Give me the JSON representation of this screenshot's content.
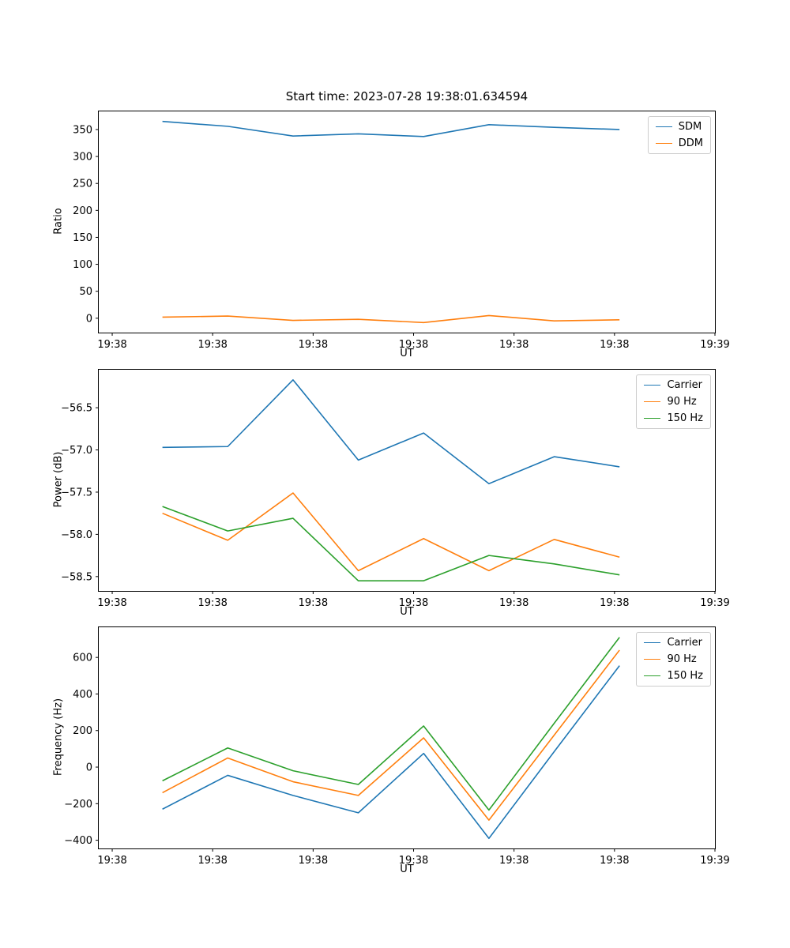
{
  "figure": {
    "title": "Start time: 2023-07-28 19:38:01.634594"
  },
  "chart_data": [
    {
      "type": "line",
      "name": "ratio",
      "title": "Start time: 2023-07-28 19:38:01.634594",
      "xlabel": "UT",
      "ylabel": "Ratio",
      "grid": false,
      "legend_position": "upper right",
      "x": [
        5.0,
        11.5,
        18.0,
        24.5,
        31.0,
        37.5,
        44.0,
        50.5
      ],
      "xlim": [
        -1.34,
        60
      ],
      "ylim": [
        -26.65,
        383.65
      ],
      "xticks": {
        "values": [
          0,
          10,
          20,
          30,
          40,
          50,
          60
        ],
        "labels": [
          "19:38",
          "19:38",
          "19:38",
          "19:38",
          "19:38",
          "19:38",
          "19:39"
        ]
      },
      "yticks": {
        "values": [
          0,
          50,
          100,
          150,
          200,
          250,
          300,
          350
        ],
        "labels": [
          "0",
          "50",
          "100",
          "150",
          "200",
          "250",
          "300",
          "350"
        ]
      },
      "series": [
        {
          "name": "SDM",
          "color": "#1f77b4",
          "values": [
            365,
            356,
            338,
            342,
            337,
            359,
            354,
            350
          ]
        },
        {
          "name": "DDM",
          "color": "#ff7f0e",
          "values": [
            2,
            4,
            -4,
            -2,
            -8,
            5,
            -5,
            -3
          ]
        }
      ]
    },
    {
      "type": "line",
      "name": "power",
      "xlabel": "UT",
      "ylabel": "Power (dB)",
      "grid": false,
      "legend_position": "upper right",
      "x": [
        5.0,
        11.5,
        18.0,
        24.5,
        31.0,
        37.5,
        44.0,
        50.5
      ],
      "xlim": [
        -1.34,
        60
      ],
      "ylim": [
        -58.67,
        -56.05
      ],
      "xticks": {
        "values": [
          0,
          10,
          20,
          30,
          40,
          50,
          60
        ],
        "labels": [
          "19:38",
          "19:38",
          "19:38",
          "19:38",
          "19:38",
          "19:38",
          "19:39"
        ]
      },
      "yticks": {
        "values": [
          -58.5,
          -58.0,
          -57.5,
          -57.0,
          -56.5
        ],
        "labels": [
          "−58.5",
          "−58.0",
          "−57.5",
          "−57.0",
          "−56.5"
        ]
      },
      "series": [
        {
          "name": "Carrier",
          "color": "#1f77b4",
          "values": [
            -56.97,
            -56.96,
            -56.17,
            -57.12,
            -56.8,
            -57.4,
            -57.08,
            -57.2
          ]
        },
        {
          "name": "90 Hz",
          "color": "#ff7f0e",
          "values": [
            -57.75,
            -58.07,
            -57.51,
            -58.43,
            -58.05,
            -58.43,
            -58.06,
            -58.27
          ]
        },
        {
          "name": "150 Hz",
          "color": "#2ca02c",
          "values": [
            -57.67,
            -57.96,
            -57.81,
            -58.55,
            -58.55,
            -58.25,
            -58.35,
            -58.48
          ]
        }
      ]
    },
    {
      "type": "line",
      "name": "frequency",
      "xlabel": "UT",
      "ylabel": "Frequency (Hz)",
      "grid": false,
      "legend_position": "upper right",
      "x": [
        5.0,
        11.5,
        18.0,
        24.5,
        31.0,
        37.5,
        44.0,
        50.5
      ],
      "xlim": [
        -1.34,
        60
      ],
      "ylim": [
        -445,
        765
      ],
      "xticks": {
        "values": [
          0,
          10,
          20,
          30,
          40,
          50,
          60
        ],
        "labels": [
          "19:38",
          "19:38",
          "19:38",
          "19:38",
          "19:38",
          "19:38",
          "19:39"
        ]
      },
      "yticks": {
        "values": [
          -400,
          -200,
          0,
          200,
          400,
          600
        ],
        "labels": [
          "−400",
          "−200",
          "0",
          "200",
          "400",
          "600"
        ]
      },
      "series": [
        {
          "name": "Carrier",
          "color": "#1f77b4",
          "values": [
            -230,
            -45,
            -155,
            -250,
            75,
            -390,
            85,
            555
          ]
        },
        {
          "name": "90 Hz",
          "color": "#ff7f0e",
          "values": [
            -140,
            50,
            -80,
            -155,
            160,
            -290,
            175,
            640
          ]
        },
        {
          "name": "150 Hz",
          "color": "#2ca02c",
          "values": [
            -75,
            105,
            -20,
            -95,
            225,
            -235,
            240,
            710
          ]
        }
      ]
    }
  ]
}
